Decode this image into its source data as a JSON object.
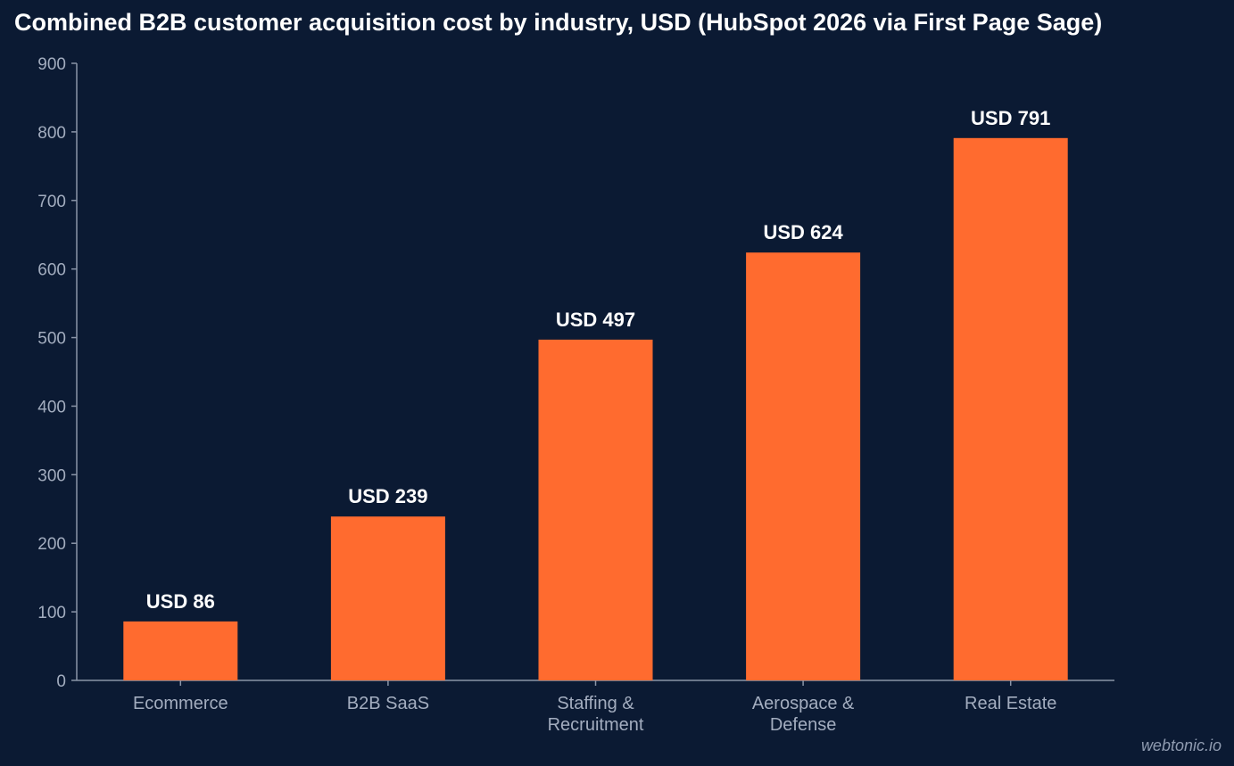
{
  "chart_data": {
    "type": "bar",
    "title": "Combined B2B customer acquisition cost by industry, USD (HubSpot 2026 via First Page Sage)",
    "xlabel": "",
    "ylabel": "",
    "categories": [
      [
        "Ecommerce"
      ],
      [
        "B2B SaaS"
      ],
      [
        "Staffing &",
        "Recruitment"
      ],
      [
        "Aerospace &",
        "Defense"
      ],
      [
        "Real Estate"
      ]
    ],
    "values": [
      86,
      239,
      497,
      624,
      791
    ],
    "data_labels": [
      "USD 86",
      "USD 239",
      "USD 497",
      "USD 624",
      "USD 791"
    ],
    "ylim": [
      0,
      900
    ],
    "yticks": [
      0,
      100,
      200,
      300,
      400,
      500,
      600,
      700,
      800,
      900
    ],
    "grid": false,
    "legend": "none",
    "colors": {
      "background": "#0b1a33",
      "bar": "#ff6b2f",
      "axis": "#8a95a8",
      "tick_text": "#a3adbf",
      "label_text": "#ffffff"
    }
  },
  "watermark": "webtonic.io"
}
